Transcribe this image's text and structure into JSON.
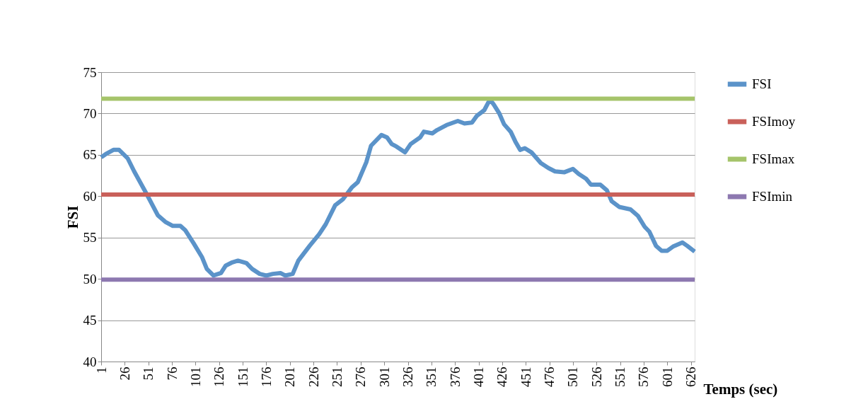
{
  "chart_data": {
    "type": "line",
    "xlabel": "Temps (sec)",
    "ylabel": "FSI",
    "xlim": [
      1,
      630
    ],
    "xticks": [
      1,
      26,
      51,
      76,
      101,
      126,
      151,
      176,
      201,
      226,
      251,
      276,
      301,
      326,
      351,
      376,
      401,
      426,
      451,
      476,
      501,
      526,
      551,
      576,
      601,
      626
    ],
    "ylim": [
      40,
      75
    ],
    "yticks": [
      40,
      45,
      50,
      55,
      60,
      65,
      70,
      75
    ],
    "grid": "y",
    "legend": "right",
    "marker": "none",
    "line_style": "solid",
    "series": [
      {
        "name": "FSI",
        "color": "#5b93c9",
        "x": [
          1,
          6,
          14,
          20,
          29,
          36,
          49,
          61,
          69,
          77,
          85,
          90,
          99,
          108,
          113,
          120,
          128,
          133,
          140,
          146,
          155,
          161,
          169,
          176,
          183,
          191,
          196,
          204,
          210,
          222,
          232,
          239,
          249,
          257,
          267,
          273,
          282,
          287,
          298,
          304,
          309,
          314,
          323,
          329,
          339,
          343,
          352,
          357,
          367,
          379,
          386,
          394,
          399,
          407,
          413,
          417,
          423,
          428,
          435,
          440,
          445,
          450,
          457,
          467,
          475,
          482,
          492,
          501,
          507,
          515,
          520,
          530,
          537,
          542,
          550,
          562,
          570,
          577,
          582,
          589,
          595,
          601,
          607,
          617,
          622,
          630
        ],
        "values": [
          64.7,
          65.1,
          65.6,
          65.6,
          64.6,
          63.0,
          60.3,
          57.7,
          56.9,
          56.4,
          56.4,
          55.9,
          54.3,
          52.6,
          51.2,
          50.4,
          50.7,
          51.6,
          52.0,
          52.2,
          51.9,
          51.2,
          50.6,
          50.4,
          50.6,
          50.7,
          50.4,
          50.6,
          52.2,
          54.0,
          55.4,
          56.6,
          58.9,
          59.6,
          61.1,
          61.7,
          64.1,
          66.1,
          67.4,
          67.1,
          66.3,
          66.0,
          65.3,
          66.3,
          67.1,
          67.8,
          67.6,
          68.0,
          68.6,
          69.1,
          68.8,
          68.9,
          69.7,
          70.4,
          71.7,
          71.1,
          70.0,
          68.7,
          67.8,
          66.6,
          65.6,
          65.8,
          65.3,
          64.0,
          63.4,
          63.0,
          62.9,
          63.3,
          62.7,
          62.1,
          61.4,
          61.4,
          60.7,
          59.4,
          58.7,
          58.4,
          57.6,
          56.3,
          55.7,
          54.0,
          53.4,
          53.4,
          53.9,
          54.4,
          54.0,
          53.3
        ]
      },
      {
        "name": "FSImoy",
        "color": "#c9605a",
        "x": [
          1,
          630
        ],
        "values": [
          60.2,
          60.2
        ]
      },
      {
        "name": "FSImax",
        "color": "#a5c46a",
        "x": [
          1,
          630
        ],
        "values": [
          71.8,
          71.8
        ]
      },
      {
        "name": "FSImin",
        "color": "#8d78b0",
        "x": [
          1,
          630
        ],
        "values": [
          49.9,
          49.9
        ]
      }
    ]
  }
}
